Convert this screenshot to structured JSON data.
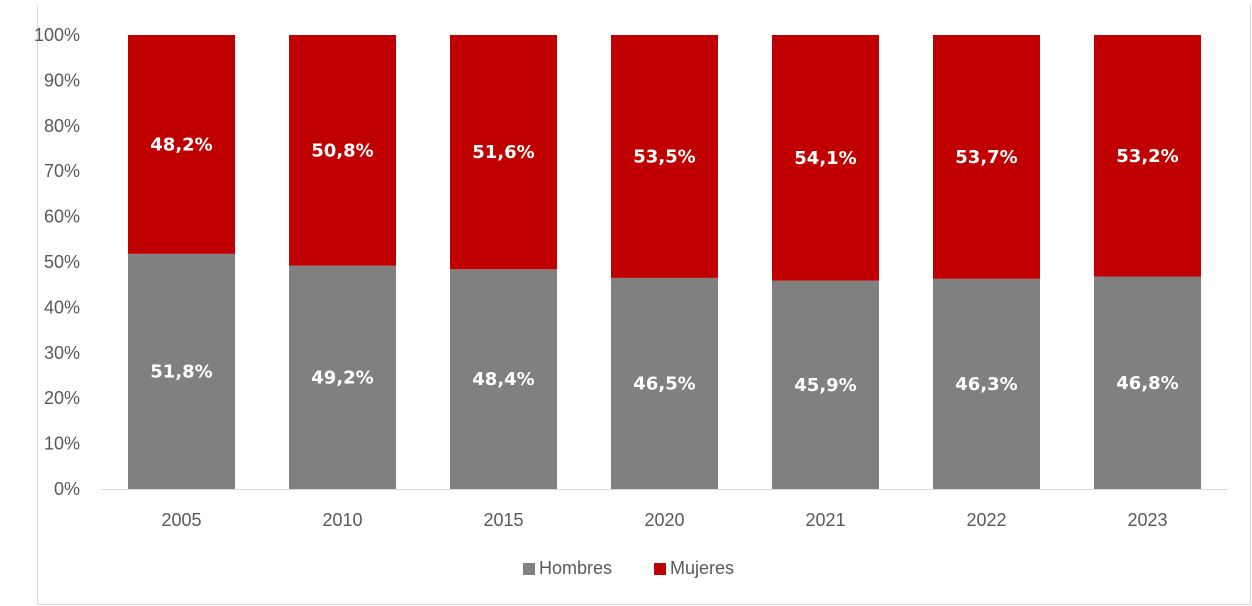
{
  "chart_data": {
    "type": "bar",
    "stacked": true,
    "percent_stacked": true,
    "categories": [
      "2005",
      "2010",
      "2015",
      "2020",
      "2021",
      "2022",
      "2023"
    ],
    "series": [
      {
        "name": "Hombres",
        "color": "#808080",
        "values": [
          51.8,
          49.2,
          48.4,
          46.5,
          45.9,
          46.3,
          46.8
        ],
        "labels": [
          "51,8%",
          "49,2%",
          "48,4%",
          "46,5%",
          "45,9%",
          "46,3%",
          "46,8%"
        ]
      },
      {
        "name": "Mujeres",
        "color": "#c00000",
        "values": [
          48.2,
          50.8,
          51.6,
          53.5,
          54.1,
          53.7,
          53.2
        ],
        "labels": [
          "48,2%",
          "50,8%",
          "51,6%",
          "53,5%",
          "54,1%",
          "53,7%",
          "53,2%"
        ]
      }
    ],
    "y_ticks": [
      "0%",
      "10%",
      "20%",
      "30%",
      "40%",
      "50%",
      "60%",
      "70%",
      "80%",
      "90%",
      "100%"
    ],
    "ylim": [
      0,
      100
    ],
    "grid": false,
    "legend_position": "bottom",
    "title": "",
    "xlabel": "",
    "ylabel": ""
  }
}
